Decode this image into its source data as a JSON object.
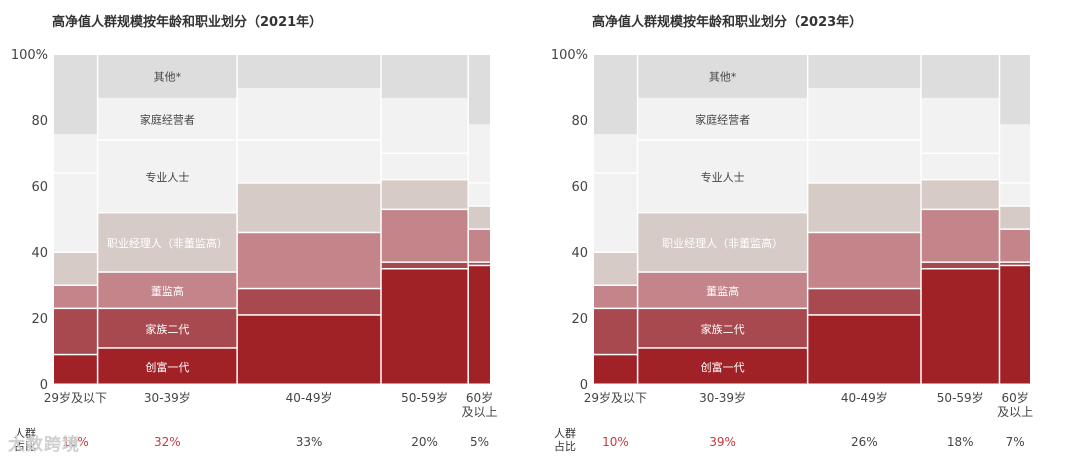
{
  "colors": {
    "创富一代": "#a02226",
    "家族二代": "#a8494f",
    "董监高": "#c4858a",
    "职业经理人（非董监高）": "#d6cbc6",
    "专业人士": "#f2f2f2",
    "家庭经营者": "#f2f2f2",
    "其他*": "#dcdddc",
    "share_text": "#c8383e"
  },
  "watermark": "大数跨境",
  "chart_data": [
    {
      "type": "mekko",
      "title": "高净值人群规模按年龄和职业划分（2021年）",
      "ylim": [
        0,
        100
      ],
      "yticks": [
        0,
        20,
        40,
        60,
        80,
        100
      ],
      "ytick_labels": [
        "0",
        "20",
        "40",
        "60",
        "80",
        "100%"
      ],
      "share_header": [
        "人群",
        "占比"
      ],
      "categories": [
        {
          "label": [
            "29岁及以下"
          ],
          "share": 10,
          "share_label": "10%",
          "segments": [
            9,
            14,
            7,
            10,
            24,
            12,
            24
          ]
        },
        {
          "label": [
            "30-39岁"
          ],
          "share": 32,
          "share_label": "32%",
          "segments": [
            11,
            12,
            11,
            18,
            22,
            13,
            13
          ]
        },
        {
          "label": [
            "40-49岁"
          ],
          "share": 33,
          "share_label": "33%",
          "segments": [
            21,
            8,
            17,
            15,
            13,
            16,
            10
          ]
        },
        {
          "label": [
            "50-59岁"
          ],
          "share": 20,
          "share_label": "20%",
          "segments": [
            35,
            2,
            16,
            9,
            8,
            17,
            13
          ]
        },
        {
          "label": [
            "60岁",
            "及以上"
          ],
          "share": 5,
          "share_label": "5%",
          "segments": [
            36,
            1,
            10,
            7,
            7,
            18,
            21
          ]
        }
      ],
      "series": [
        "创富一代",
        "家族二代",
        "董监高",
        "职业经理人（非董监高）",
        "专业人士",
        "家庭经营者",
        "其他*"
      ],
      "label_column": 1
    },
    {
      "type": "mekko",
      "title": "高净值人群规模按年龄和职业划分（2023年）",
      "ylim": [
        0,
        100
      ],
      "yticks": [
        0,
        20,
        40,
        60,
        80,
        100
      ],
      "ytick_labels": [
        "0",
        "20",
        "40",
        "60",
        "80",
        "100%"
      ],
      "share_header": [
        "人群",
        "占比"
      ],
      "categories": [
        {
          "label": [
            "29岁及以下"
          ],
          "share": 10,
          "share_label": "10%",
          "segments": [
            9,
            14,
            7,
            10,
            24,
            12,
            24
          ]
        },
        {
          "label": [
            "30-39岁"
          ],
          "share": 39,
          "share_label": "39%",
          "segments": [
            11,
            12,
            11,
            18,
            22,
            13,
            13
          ]
        },
        {
          "label": [
            "40-49岁"
          ],
          "share": 26,
          "share_label": "26%",
          "segments": [
            21,
            8,
            17,
            15,
            13,
            16,
            10
          ]
        },
        {
          "label": [
            "50-59岁"
          ],
          "share": 18,
          "share_label": "18%",
          "segments": [
            35,
            2,
            16,
            9,
            8,
            17,
            13
          ]
        },
        {
          "label": [
            "60岁",
            "及以上"
          ],
          "share": 7,
          "share_label": "7%",
          "segments": [
            36,
            1,
            10,
            7,
            7,
            18,
            21
          ]
        }
      ],
      "series": [
        "创富一代",
        "家族二代",
        "董监高",
        "职业经理人（非董监高）",
        "专业人士",
        "家庭经营者",
        "其他*"
      ],
      "label_column": 1
    }
  ]
}
